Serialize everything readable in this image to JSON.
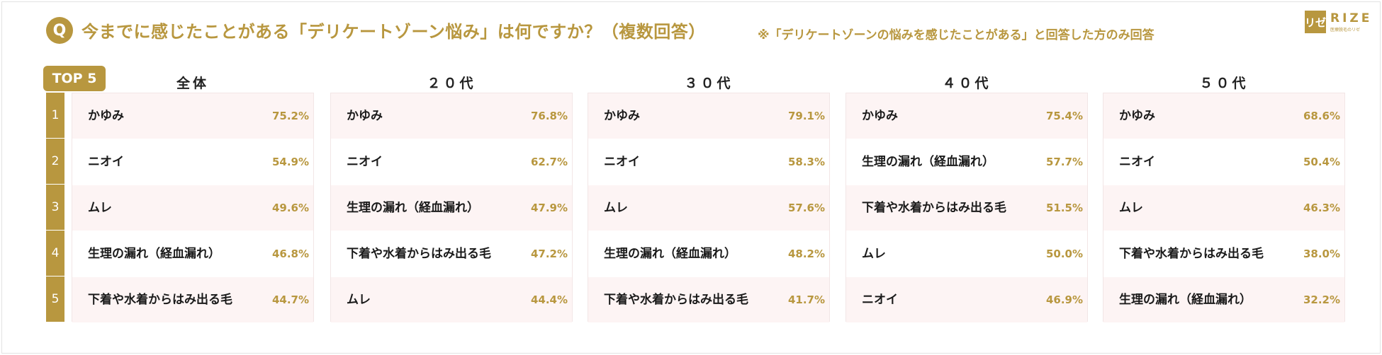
{
  "header": {
    "q_label": "Q",
    "title": "今までに感じたことがある「デリケートゾーン悩み」は何ですか？（複数回答）",
    "note": "※「デリケートゾーンの悩みを感じたことがある」と回答した方のみ回答"
  },
  "logo": {
    "mark": "リゼ",
    "text": "RIZE",
    "sub": "医療脱毛のリゼ"
  },
  "top_tag": "TOP 5",
  "ranks": [
    "1",
    "2",
    "3",
    "4",
    "5"
  ],
  "colors": {
    "accent": "#b8973f",
    "row_tint": "#fdf4f4"
  },
  "chart_data": {
    "type": "table",
    "columns": [
      "全体",
      "２０代",
      "３０代",
      "４０代",
      "５０代"
    ],
    "groups": [
      {
        "name": "全体",
        "items": [
          {
            "label": "かゆみ",
            "value": "75.2%"
          },
          {
            "label": "ニオイ",
            "value": "54.9%"
          },
          {
            "label": "ムレ",
            "value": "49.6%"
          },
          {
            "label": "生理の漏れ（経血漏れ）",
            "value": "46.8%"
          },
          {
            "label": "下着や水着からはみ出る毛",
            "value": "44.7%"
          }
        ]
      },
      {
        "name": "２０代",
        "items": [
          {
            "label": "かゆみ",
            "value": "76.8%"
          },
          {
            "label": "ニオイ",
            "value": "62.7%"
          },
          {
            "label": "生理の漏れ（経血漏れ）",
            "value": "47.9%"
          },
          {
            "label": "下着や水着からはみ出る毛",
            "value": "47.2%"
          },
          {
            "label": "ムレ",
            "value": "44.4%"
          }
        ]
      },
      {
        "name": "３０代",
        "items": [
          {
            "label": "かゆみ",
            "value": "79.1%"
          },
          {
            "label": "ニオイ",
            "value": "58.3%"
          },
          {
            "label": "ムレ",
            "value": "57.6%"
          },
          {
            "label": "生理の漏れ（経血漏れ）",
            "value": "48.2%"
          },
          {
            "label": "下着や水着からはみ出る毛",
            "value": "41.7%"
          }
        ]
      },
      {
        "name": "４０代",
        "items": [
          {
            "label": "かゆみ",
            "value": "75.4%"
          },
          {
            "label": "生理の漏れ（経血漏れ）",
            "value": "57.7%"
          },
          {
            "label": "下着や水着からはみ出る毛",
            "value": "51.5%"
          },
          {
            "label": "ムレ",
            "value": "50.0%"
          },
          {
            "label": "ニオイ",
            "value": "46.9%"
          }
        ]
      },
      {
        "name": "５０代",
        "items": [
          {
            "label": "かゆみ",
            "value": "68.6%"
          },
          {
            "label": "ニオイ",
            "value": "50.4%"
          },
          {
            "label": "ムレ",
            "value": "46.3%"
          },
          {
            "label": "下着や水着からはみ出る毛",
            "value": "38.0%"
          },
          {
            "label": "生理の漏れ（経血漏れ）",
            "value": "32.2%"
          }
        ]
      }
    ]
  }
}
